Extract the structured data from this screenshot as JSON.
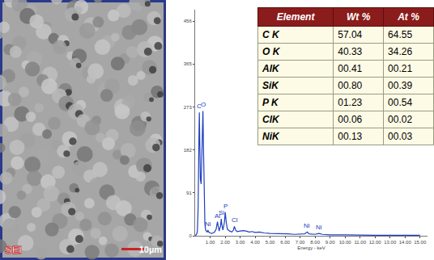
{
  "image": {
    "label": "SEI",
    "scale_bar": "10µm"
  },
  "chart_data": {
    "type": "line",
    "x_label": "Energy - keV",
    "x": [
      0.0,
      0.1,
      0.15,
      0.2,
      0.25,
      0.28,
      0.31,
      0.35,
      0.4,
      0.45,
      0.5,
      0.52,
      0.55,
      0.6,
      0.65,
      0.7,
      0.8,
      0.85,
      0.9,
      1.0,
      1.1,
      1.2,
      1.3,
      1.4,
      1.45,
      1.49,
      1.53,
      1.6,
      1.7,
      1.74,
      1.78,
      1.85,
      1.95,
      2.01,
      2.07,
      2.15,
      2.3,
      2.45,
      2.55,
      2.62,
      2.7,
      2.8,
      3.0,
      3.2,
      3.4,
      3.6,
      3.8,
      4.0,
      4.3,
      4.6,
      5.0,
      5.4,
      5.8,
      6.2,
      6.6,
      7.0,
      7.3,
      7.47,
      7.6,
      8.0,
      8.26,
      8.5,
      9.0,
      10.0,
      11.0,
      12.0,
      13.0,
      14.0,
      15.0
    ],
    "values": [
      0,
      3,
      10,
      60,
      200,
      262,
      200,
      120,
      110,
      200,
      255,
      265,
      200,
      80,
      25,
      12,
      8,
      12,
      8,
      6,
      5,
      6,
      8,
      14,
      22,
      30,
      22,
      10,
      22,
      36,
      24,
      12,
      28,
      50,
      30,
      14,
      10,
      8,
      12,
      20,
      12,
      9,
      10,
      11,
      10,
      8,
      9,
      7,
      8,
      6,
      5,
      5,
      4,
      4,
      3,
      3,
      4,
      8,
      4,
      3,
      5,
      3,
      2,
      2,
      1,
      1,
      1,
      1,
      1
    ],
    "color": "#1f3fbf",
    "xlim": [
      0,
      15.5
    ],
    "ylim": [
      0,
      480
    ],
    "xticks": [
      {
        "value": 1,
        "label": "1.00"
      },
      {
        "value": 2,
        "label": "2.00"
      },
      {
        "value": 3,
        "label": "3.00"
      },
      {
        "value": 4,
        "label": "4.00"
      },
      {
        "value": 5,
        "label": "5.00"
      },
      {
        "value": 6,
        "label": "6.00"
      },
      {
        "value": 7,
        "label": "7.00"
      },
      {
        "value": 8,
        "label": "8.00"
      },
      {
        "value": 9,
        "label": "9.00"
      },
      {
        "value": 10,
        "label": "10.00"
      },
      {
        "value": 11,
        "label": "11.00"
      },
      {
        "value": 12,
        "label": "12.00"
      },
      {
        "value": 13,
        "label": "13.00"
      },
      {
        "value": 14,
        "label": "14.00"
      },
      {
        "value": 15,
        "label": "15.00"
      }
    ],
    "yticks": [
      0,
      91,
      182,
      273,
      365,
      456
    ],
    "grid": false,
    "annotations": [
      {
        "text": "C",
        "x": 0.28,
        "y": 262
      },
      {
        "text": "O",
        "x": 0.52,
        "y": 265
      },
      {
        "text": "Ni",
        "x": 0.85,
        "y": 12
      },
      {
        "text": "Al",
        "x": 1.49,
        "y": 30
      },
      {
        "text": "Si",
        "x": 1.74,
        "y": 36
      },
      {
        "text": "P",
        "x": 2.01,
        "y": 50
      },
      {
        "text": "Cl",
        "x": 2.62,
        "y": 20
      },
      {
        "text": "Ni",
        "x": 7.47,
        "y": 8
      },
      {
        "text": "Ni",
        "x": 8.26,
        "y": 5
      }
    ]
  },
  "table": {
    "header": [
      "Element",
      "Wt %",
      "At %"
    ],
    "rows": [
      [
        "C K",
        "57.04",
        "64.55"
      ],
      [
        "O K",
        "40.33",
        "34.26"
      ],
      [
        "AlK",
        "00.41",
        "00.21"
      ],
      [
        "SiK",
        "00.80",
        "00.39"
      ],
      [
        "P K",
        "01.23",
        "00.54"
      ],
      [
        "ClK",
        "00.06",
        "00.02"
      ],
      [
        "NiK",
        "00.13",
        "00.03"
      ]
    ]
  }
}
